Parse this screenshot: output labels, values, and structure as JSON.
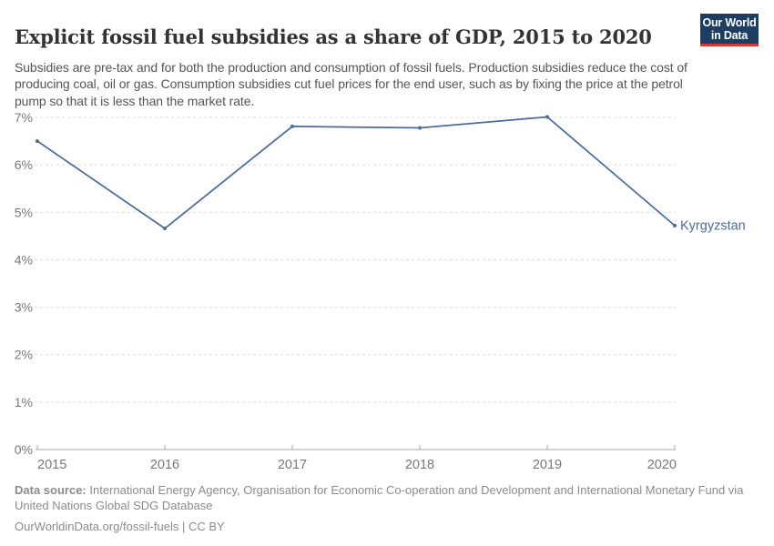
{
  "header": {
    "title": "Explicit fossil fuel subsidies as a share of GDP, 2015 to 2020",
    "subtitle": "Subsidies are pre-tax and for both the production and consumption of fossil fuels. Production subsidies reduce the cost of producing coal, oil or gas. Consumption subsidies cut fuel prices for the end user, such as by fixing the price at the petrol pump so that it is less than the market rate.",
    "logo": {
      "line1": "Our World",
      "line2": "in Data"
    }
  },
  "chart_data": {
    "type": "line",
    "title": "Explicit fossil fuel subsidies as a share of GDP, 2015 to 2020",
    "categories": [
      "2015",
      "2016",
      "2017",
      "2018",
      "2019",
      "2020"
    ],
    "series": [
      {
        "name": "Kyrgyzstan",
        "values": [
          6.5,
          4.66,
          6.81,
          6.78,
          7.01,
          4.72
        ],
        "color": "#4c6a9c"
      }
    ],
    "xlabel": "",
    "ylabel": "",
    "ylim": [
      0,
      7
    ],
    "ytick_labels": [
      "0%",
      "1%",
      "2%",
      "3%",
      "4%",
      "5%",
      "6%",
      "7%"
    ],
    "grid": "horizontal-dashed",
    "legend": "line-end-label"
  },
  "footer": {
    "source_label": "Data source:",
    "source_text": " International Energy Agency, Organisation for Economic Co-operation and Development and International Monetary Fund via United Nations Global SDG Database",
    "cc_line": "OurWorldinData.org/fossil-fuels | CC BY"
  },
  "colors": {
    "line": "#4c6a9c",
    "entity_label": "#4c6a9c",
    "logo_bg": "#1d3d63",
    "logo_bar": "#d23a33",
    "gridline": "#dcdcdc",
    "axis": "#a8a8a8",
    "tick_label": "#787878"
  }
}
